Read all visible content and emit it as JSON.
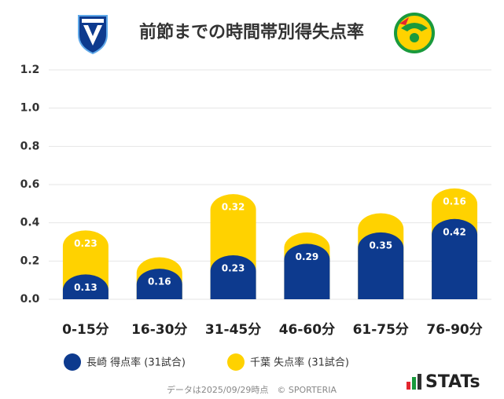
{
  "chart_data": {
    "type": "stacked_bar",
    "title": "前節までの時間帯別得失点率",
    "categories": [
      "0-15分",
      "16-30分",
      "31-45分",
      "46-60分",
      "61-75分",
      "76-90分"
    ],
    "series": [
      {
        "name": "長崎 得点率 (31試合)",
        "color": "#0d3a8e",
        "values": [
          0.13,
          0.16,
          0.23,
          0.29,
          0.35,
          0.42
        ]
      },
      {
        "name": "千葉 失点率 (31試合)",
        "color": "#ffd200",
        "values": [
          0.23,
          0.06,
          0.32,
          0.06,
          0.1,
          0.16
        ],
        "value_labels": [
          "0.23",
          null,
          "0.32",
          null,
          null,
          "0.16"
        ]
      }
    ],
    "ylim": [
      0,
      1.2
    ],
    "yticks": [
      {
        "value": 0,
        "label": "0.0"
      },
      0.2,
      0.4,
      0.6,
      0.8,
      {
        "value": 1,
        "label": "1.0"
      },
      1.2
    ],
    "grid": true,
    "footer": "データは2025/09/29時点　© SPORTERIA",
    "brand": "STATs"
  }
}
